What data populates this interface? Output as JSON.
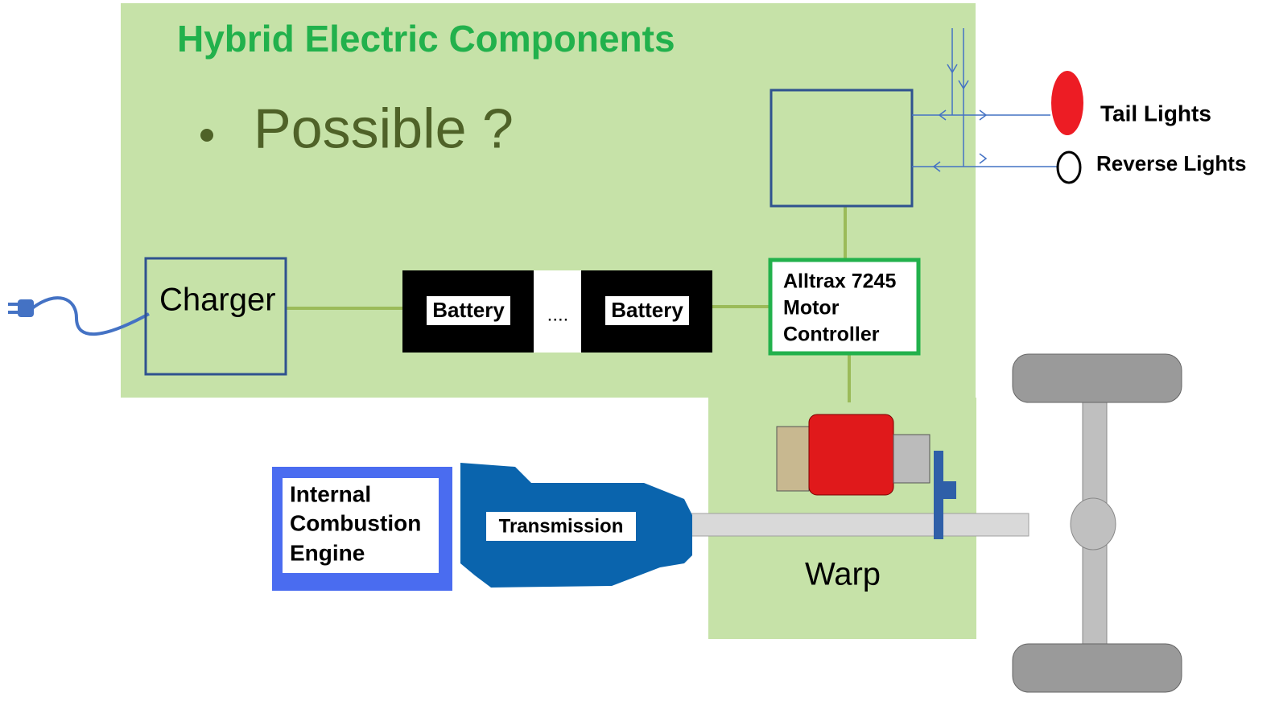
{
  "header": {
    "title": "Hybrid Electric Components"
  },
  "bullets": [
    "Possible ?"
  ],
  "nodes": [
    {
      "label": "Charger"
    },
    {
      "label": "Battery"
    },
    {
      "label": "...."
    },
    {
      "label": "Battery"
    },
    {
      "lines": [
        "Alltrax 7245",
        "Motor",
        "Controller"
      ]
    },
    {
      "label": "Tail Lights"
    },
    {
      "label": "Reverse Lights"
    },
    {
      "lines": [
        "Internal",
        "Combustion",
        "Engine"
      ]
    },
    {
      "label": "Transmission"
    },
    {
      "label": "Warp"
    }
  ]
}
